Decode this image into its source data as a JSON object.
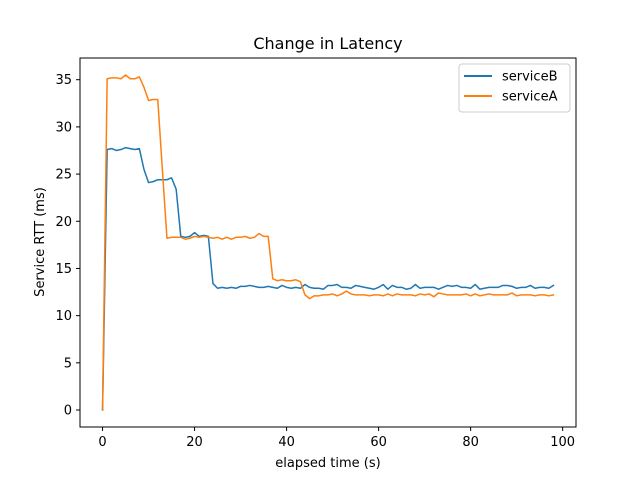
{
  "chart_data": {
    "type": "line",
    "title": "Change in Latency",
    "xlabel": "elapsed time (s)",
    "ylabel": "Service RTT (ms)",
    "xlim": [
      -4.9,
      102.9
    ],
    "ylim": [
      -1.8,
      37.3
    ],
    "xticks": [
      0,
      20,
      40,
      60,
      80,
      100
    ],
    "yticks": [
      0,
      5,
      10,
      15,
      20,
      25,
      30,
      35
    ],
    "grid": false,
    "legend_position": "top-right",
    "series": [
      {
        "name": "serviceB",
        "color": "#1f77b4",
        "x": [
          0,
          1,
          2,
          3,
          4,
          5,
          6,
          7,
          8,
          9,
          10,
          11,
          12,
          13,
          14,
          15,
          16,
          17,
          18,
          19,
          20,
          21,
          22,
          23,
          24,
          25,
          26,
          27,
          28,
          29,
          30,
          31,
          32,
          33,
          34,
          35,
          36,
          37,
          38,
          39,
          40,
          41,
          42,
          43,
          44,
          45,
          46,
          47,
          48,
          49,
          50,
          51,
          52,
          53,
          54,
          55,
          56,
          57,
          58,
          59,
          60,
          61,
          62,
          63,
          64,
          65,
          66,
          67,
          68,
          69,
          70,
          71,
          72,
          73,
          74,
          75,
          76,
          77,
          78,
          79,
          80,
          81,
          82,
          83,
          84,
          85,
          86,
          87,
          88,
          89,
          90,
          91,
          92,
          93,
          94,
          95,
          96,
          97,
          98
        ],
        "y": [
          0,
          27.6,
          27.7,
          27.5,
          27.6,
          27.8,
          27.7,
          27.6,
          27.7,
          25.5,
          24.1,
          24.2,
          24.4,
          24.4,
          24.4,
          24.6,
          23.4,
          18.4,
          18.3,
          18.4,
          18.8,
          18.4,
          18.5,
          18.4,
          13.4,
          12.9,
          13,
          12.9,
          13,
          12.9,
          13.1,
          13.1,
          13.2,
          13.1,
          13,
          13,
          13.1,
          13,
          12.9,
          13.2,
          13,
          12.9,
          13,
          12.9,
          13.3,
          13,
          12.9,
          12.9,
          12.8,
          13.2,
          13.2,
          13.3,
          13,
          13,
          12.9,
          13.2,
          13.1,
          13,
          12.9,
          12.8,
          13,
          13.3,
          12.8,
          13.2,
          13,
          13,
          12.8,
          12.9,
          13.3,
          12.9,
          13,
          13,
          13,
          12.8,
          13,
          13.2,
          13.1,
          13.2,
          13,
          13,
          12.9,
          13.3,
          12.8,
          12.9,
          13,
          13,
          13,
          13.2,
          13.2,
          13.1,
          12.9,
          13,
          13,
          13.2,
          12.9,
          13,
          13,
          12.9,
          13.2
        ]
      },
      {
        "name": "serviceA",
        "color": "#ff7f0e",
        "x": [
          0,
          1,
          2,
          3,
          4,
          5,
          6,
          7,
          8,
          9,
          10,
          11,
          12,
          13,
          14,
          15,
          16,
          17,
          18,
          19,
          20,
          21,
          22,
          23,
          24,
          25,
          26,
          27,
          28,
          29,
          30,
          31,
          32,
          33,
          34,
          35,
          36,
          37,
          38,
          39,
          40,
          41,
          42,
          43,
          44,
          45,
          46,
          47,
          48,
          49,
          50,
          51,
          52,
          53,
          54,
          55,
          56,
          57,
          58,
          59,
          60,
          61,
          62,
          63,
          64,
          65,
          66,
          67,
          68,
          69,
          70,
          71,
          72,
          73,
          74,
          75,
          76,
          77,
          78,
          79,
          80,
          81,
          82,
          83,
          84,
          85,
          86,
          87,
          88,
          89,
          90,
          91,
          92,
          93,
          94,
          95,
          96,
          97,
          98
        ],
        "y": [
          0,
          35.1,
          35.2,
          35.2,
          35.1,
          35.5,
          35.1,
          35.1,
          35.3,
          34.2,
          32.8,
          32.9,
          32.9,
          25.5,
          18.2,
          18.3,
          18.3,
          18.3,
          18.1,
          18.2,
          18.4,
          18.3,
          18.4,
          18.3,
          18.2,
          18.3,
          18.1,
          18.3,
          18.1,
          18.3,
          18.3,
          18.4,
          18.2,
          18.3,
          18.7,
          18.4,
          18.4,
          13.9,
          13.7,
          13.8,
          13.7,
          13.7,
          13.8,
          13.6,
          12.2,
          11.8,
          12.1,
          12.1,
          12.2,
          12.2,
          12.3,
          12.1,
          12.3,
          12.6,
          12.3,
          12.2,
          12.2,
          12.2,
          12.1,
          12.2,
          12.2,
          12.1,
          12.3,
          12.1,
          12.3,
          12.2,
          12.2,
          12.2,
          12.1,
          12.3,
          12.2,
          12.3,
          12,
          12.4,
          12.3,
          12.2,
          12.2,
          12.2,
          12.2,
          12.3,
          12.1,
          12.3,
          12.1,
          12.2,
          12.3,
          12.2,
          12.2,
          12.2,
          12.2,
          12.4,
          12.1,
          12.2,
          12.2,
          12.2,
          12.1,
          12.2,
          12.2,
          12.1,
          12.2
        ]
      }
    ]
  }
}
